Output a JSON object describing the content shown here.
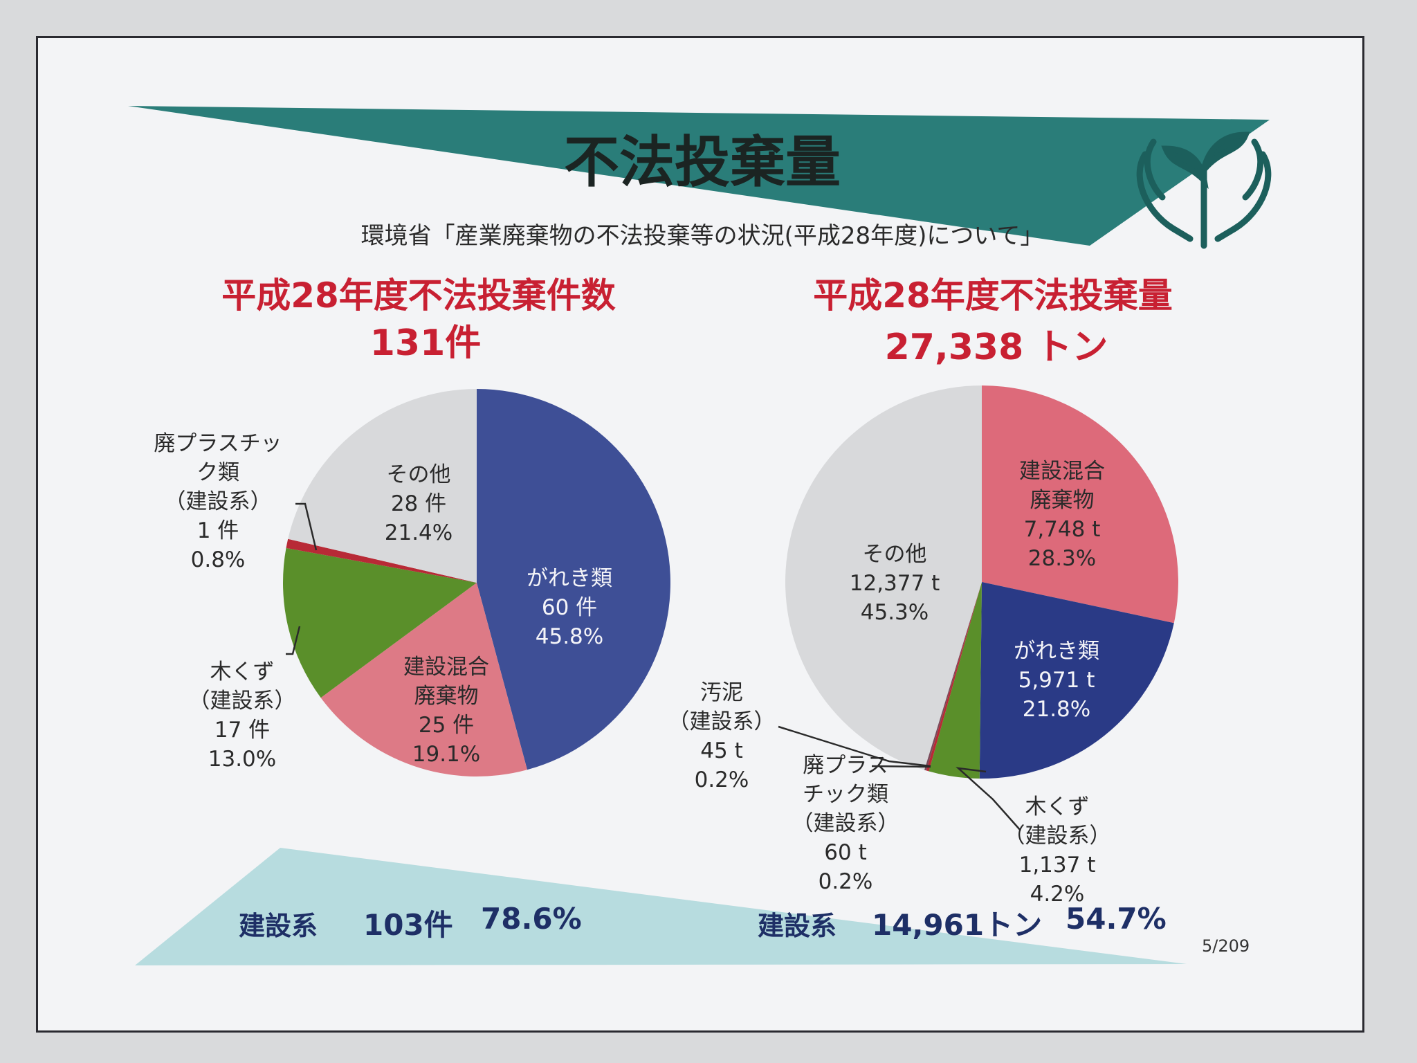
{
  "header": {
    "title": "不法投棄量",
    "source": "環境省「産業廃棄物の不法投棄等の状況(平成28年度)について」"
  },
  "colors": {
    "teal": "#2a7d79",
    "light_teal": "#b7dcdf",
    "red_text": "#c82032",
    "navy_text": "#1e2f66"
  },
  "chart_data": [
    {
      "type": "pie",
      "title": "平成28年度不法投棄件数",
      "subtitle": "131件",
      "slices": [
        {
          "lines": [
            "がれき類",
            "60 件",
            "45.8%"
          ],
          "value": 60,
          "percent": 45.8,
          "color": "#3e4f96"
        },
        {
          "lines": [
            "建設混合",
            "廃棄物",
            "25 件",
            "19.1%"
          ],
          "value": 25,
          "percent": 19.1,
          "color": "#dd7a86"
        },
        {
          "lines": [
            "木くず",
            "（建設系）",
            "17 件",
            "13.0%"
          ],
          "value": 17,
          "percent": 13.0,
          "color": "#5a8f2a"
        },
        {
          "lines": [
            "廃プラスチッ",
            "ク類",
            "（建設系）",
            "1 件",
            "0.8%"
          ],
          "value": 1,
          "percent": 0.8,
          "color": "#b82a36"
        },
        {
          "lines": [
            "その他",
            "28 件",
            "21.4%"
          ],
          "value": 28,
          "percent": 21.4,
          "color": "#d8d9db"
        }
      ]
    },
    {
      "type": "pie",
      "title": "平成28年度不法投棄量",
      "subtitle": "27,338 トン",
      "slices": [
        {
          "lines": [
            "建設混合",
            "廃棄物",
            "7,748 t",
            "28.3%"
          ],
          "value": 7748,
          "percent": 28.3,
          "color": "#dd6a7a"
        },
        {
          "lines": [
            "がれき類",
            "5,971 t",
            "21.8%"
          ],
          "value": 5971,
          "percent": 21.8,
          "color": "#2a3a86"
        },
        {
          "lines": [
            "木くず",
            "（建設系）",
            "1,137 t",
            "4.2%"
          ],
          "value": 1137,
          "percent": 4.2,
          "color": "#5a8f2a"
        },
        {
          "lines": [
            "廃プラス",
            "チック類",
            "（建設系）",
            "60 t",
            "0.2%"
          ],
          "value": 60,
          "percent": 0.2,
          "color": "#b82a36"
        },
        {
          "lines": [
            "汚泥",
            "（建設系）",
            "45 t",
            "0.2%"
          ],
          "value": 45,
          "percent": 0.2,
          "color": "#7a4a5a"
        },
        {
          "lines": [
            "その他",
            "12,377 t",
            "45.3%"
          ],
          "value": 12377,
          "percent": 45.3,
          "color": "#d8d9db"
        }
      ]
    }
  ],
  "footer": {
    "left": {
      "label": "建設系",
      "count": "103件",
      "percent": "78.6%"
    },
    "right": {
      "label": "建設系",
      "amount": "14,961トン",
      "percent": "54.7%"
    }
  },
  "page_number": "5/209"
}
